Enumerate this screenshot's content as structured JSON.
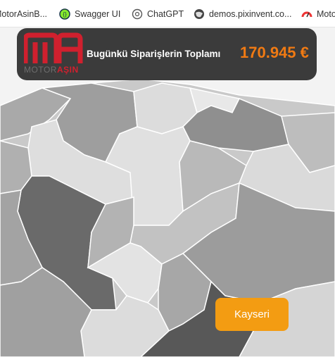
{
  "bookmarks": [
    "MotorAsinB...",
    "Swagger UI",
    "ChatGPT",
    "demos.pixinvent.co...",
    "Moto"
  ],
  "banner": {
    "logo": {
      "part1": "MOTOR",
      "part2": "AŞIN"
    },
    "title": "Bugünkü Siparişlerin Toplamı",
    "amount": "170.945 €"
  },
  "button": "Kayseri"
}
